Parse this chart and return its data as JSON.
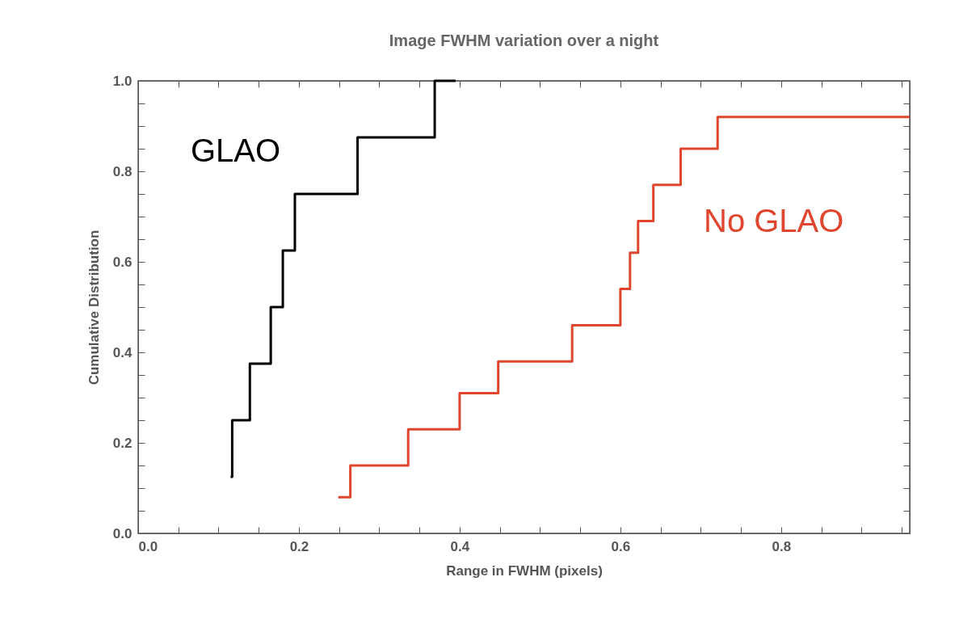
{
  "chart_data": {
    "type": "step",
    "title": "Image FWHM variation over a night",
    "xlabel": "Range in FWHM (pixels)",
    "ylabel": "Cumulative Distribution",
    "xlim": [
      0,
      0.96
    ],
    "ylim": [
      0,
      1
    ],
    "xticks": [
      {
        "value": 0,
        "label": "0.0"
      },
      {
        "value": 0.05,
        "label": null
      },
      {
        "value": 0.1,
        "label": null
      },
      {
        "value": 0.15,
        "label": null
      },
      0.2,
      {
        "value": 0.25,
        "label": null
      },
      {
        "value": 0.3,
        "label": null
      },
      {
        "value": 0.35,
        "label": null
      },
      0.4,
      {
        "value": 0.45,
        "label": null
      },
      {
        "value": 0.5,
        "label": null
      },
      {
        "value": 0.55,
        "label": null
      },
      0.6,
      {
        "value": 0.65,
        "label": null
      },
      {
        "value": 0.7,
        "label": null
      },
      {
        "value": 0.75,
        "label": null
      },
      0.8,
      {
        "value": 0.85,
        "label": null
      },
      {
        "value": 0.9,
        "label": null
      },
      {
        "value": 0.95,
        "label": null
      }
    ],
    "yticks": [
      {
        "value": 0,
        "label": "0.0"
      },
      {
        "value": 0.05,
        "label": null
      },
      {
        "value": 0.1,
        "label": null
      },
      {
        "value": 0.15,
        "label": null
      },
      0.2,
      {
        "value": 0.25,
        "label": null
      },
      {
        "value": 0.3,
        "label": null
      },
      {
        "value": 0.35,
        "label": null
      },
      0.4,
      {
        "value": 0.45,
        "label": null
      },
      {
        "value": 0.5,
        "label": null
      },
      {
        "value": 0.55,
        "label": null
      },
      0.6,
      {
        "value": 0.65,
        "label": null
      },
      {
        "value": 0.7,
        "label": null
      },
      {
        "value": 0.75,
        "label": null
      },
      0.8,
      {
        "value": 0.85,
        "label": null
      },
      {
        "value": 0.9,
        "label": null
      },
      {
        "value": 0.95,
        "label": null
      },
      {
        "value": 1,
        "label": "1.0"
      }
    ],
    "grid": false,
    "marker": "none",
    "line_style": "solid",
    "series": [
      {
        "name": "GLAO",
        "color": "#000000",
        "x": [
          0.115,
          0.117,
          0.139,
          0.165,
          0.18,
          0.195,
          0.273,
          0.369,
          0.395
        ],
        "values": [
          0.125,
          0.25,
          0.375,
          0.5,
          0.625,
          0.75,
          0.875,
          1.0,
          1.0
        ]
      },
      {
        "name": "No GLAO",
        "color": "#e0452e",
        "x": [
          0.249,
          0.264,
          0.336,
          0.4,
          0.448,
          0.54,
          0.6,
          0.612,
          0.622,
          0.641,
          0.675,
          0.721,
          0.96
        ],
        "values": [
          0.08,
          0.15,
          0.23,
          0.31,
          0.38,
          0.46,
          0.54,
          0.62,
          0.69,
          0.77,
          0.85,
          0.92,
          0.92
        ]
      }
    ]
  }
}
